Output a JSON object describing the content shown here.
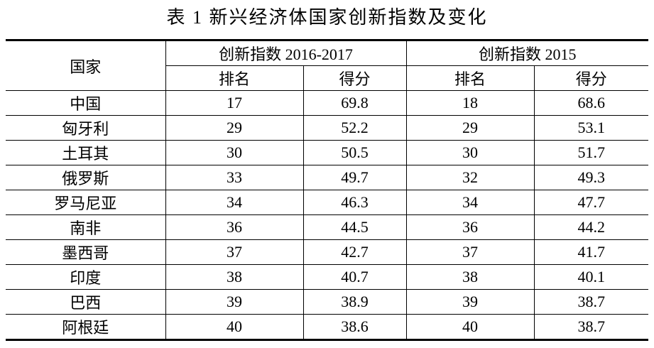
{
  "title": "表 1  新兴经济体国家创新指数及变化",
  "header": {
    "country": "国家",
    "group1": "创新指数 2016-2017",
    "group2": "创新指数 2015",
    "rank": "排名",
    "score": "得分"
  },
  "rows": [
    {
      "country": "中国",
      "rank1": "17",
      "score1": "69.8",
      "rank2": "18",
      "score2": "68.6"
    },
    {
      "country": "匈牙利",
      "rank1": "29",
      "score1": "52.2",
      "rank2": "29",
      "score2": "53.1"
    },
    {
      "country": "土耳其",
      "rank1": "30",
      "score1": "50.5",
      "rank2": "30",
      "score2": "51.7"
    },
    {
      "country": "俄罗斯",
      "rank1": "33",
      "score1": "49.7",
      "rank2": "32",
      "score2": "49.3"
    },
    {
      "country": "罗马尼亚",
      "rank1": "34",
      "score1": "46.3",
      "rank2": "34",
      "score2": "47.7"
    },
    {
      "country": "南非",
      "rank1": "36",
      "score1": "44.5",
      "rank2": "36",
      "score2": "44.2"
    },
    {
      "country": "墨西哥",
      "rank1": "37",
      "score1": "42.7",
      "rank2": "37",
      "score2": "41.7"
    },
    {
      "country": "印度",
      "rank1": "38",
      "score1": "40.7",
      "rank2": "38",
      "score2": "40.1"
    },
    {
      "country": "巴西",
      "rank1": "39",
      "score1": "38.9",
      "rank2": "39",
      "score2": "38.7"
    },
    {
      "country": "阿根廷",
      "rank1": "40",
      "score1": "38.6",
      "rank2": "40",
      "score2": "38.7"
    }
  ]
}
